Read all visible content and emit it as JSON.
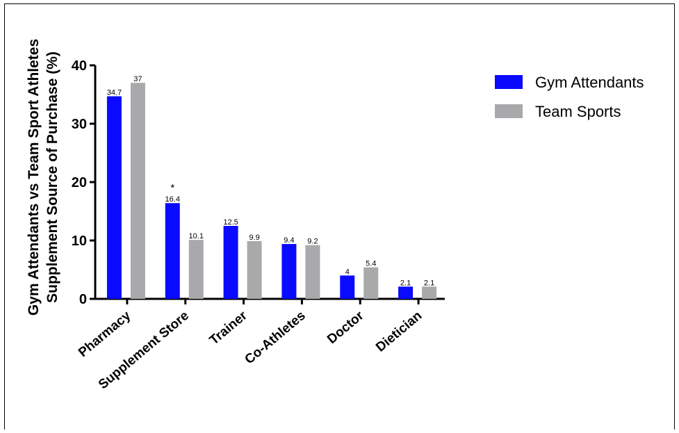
{
  "chart_data": {
    "type": "bar",
    "categories": [
      "Pharmacy",
      "Supplement Store",
      "Trainer",
      "Co-Athletes",
      "Doctor",
      "Dietician"
    ],
    "series": [
      {
        "name": "Gym Attendants",
        "color": "#0a0aff",
        "values": [
          34.7,
          16.4,
          12.5,
          9.4,
          4,
          2.1
        ],
        "labels": [
          "34.7",
          "16.4",
          "12.5",
          "9.4",
          "4",
          "2.1"
        ]
      },
      {
        "name": "Team Sports",
        "color": "#a9a9ab",
        "values": [
          37,
          10.1,
          9.9,
          9.2,
          5.4,
          2.1
        ],
        "labels": [
          "37",
          "10.1",
          "9.9",
          "9.2",
          "5.4",
          "2.1"
        ]
      }
    ],
    "ylabel_line1": "Gym Attendants vs Team Sport Athletes",
    "ylabel_line2": "Supplement Source of Purchase (%)",
    "ylim": [
      0,
      40
    ],
    "yticks": [
      0,
      10,
      20,
      30,
      40
    ],
    "annotations": [
      {
        "category": "Supplement Store",
        "text": "*"
      }
    ],
    "legend_position": "top-right",
    "grid": false
  }
}
